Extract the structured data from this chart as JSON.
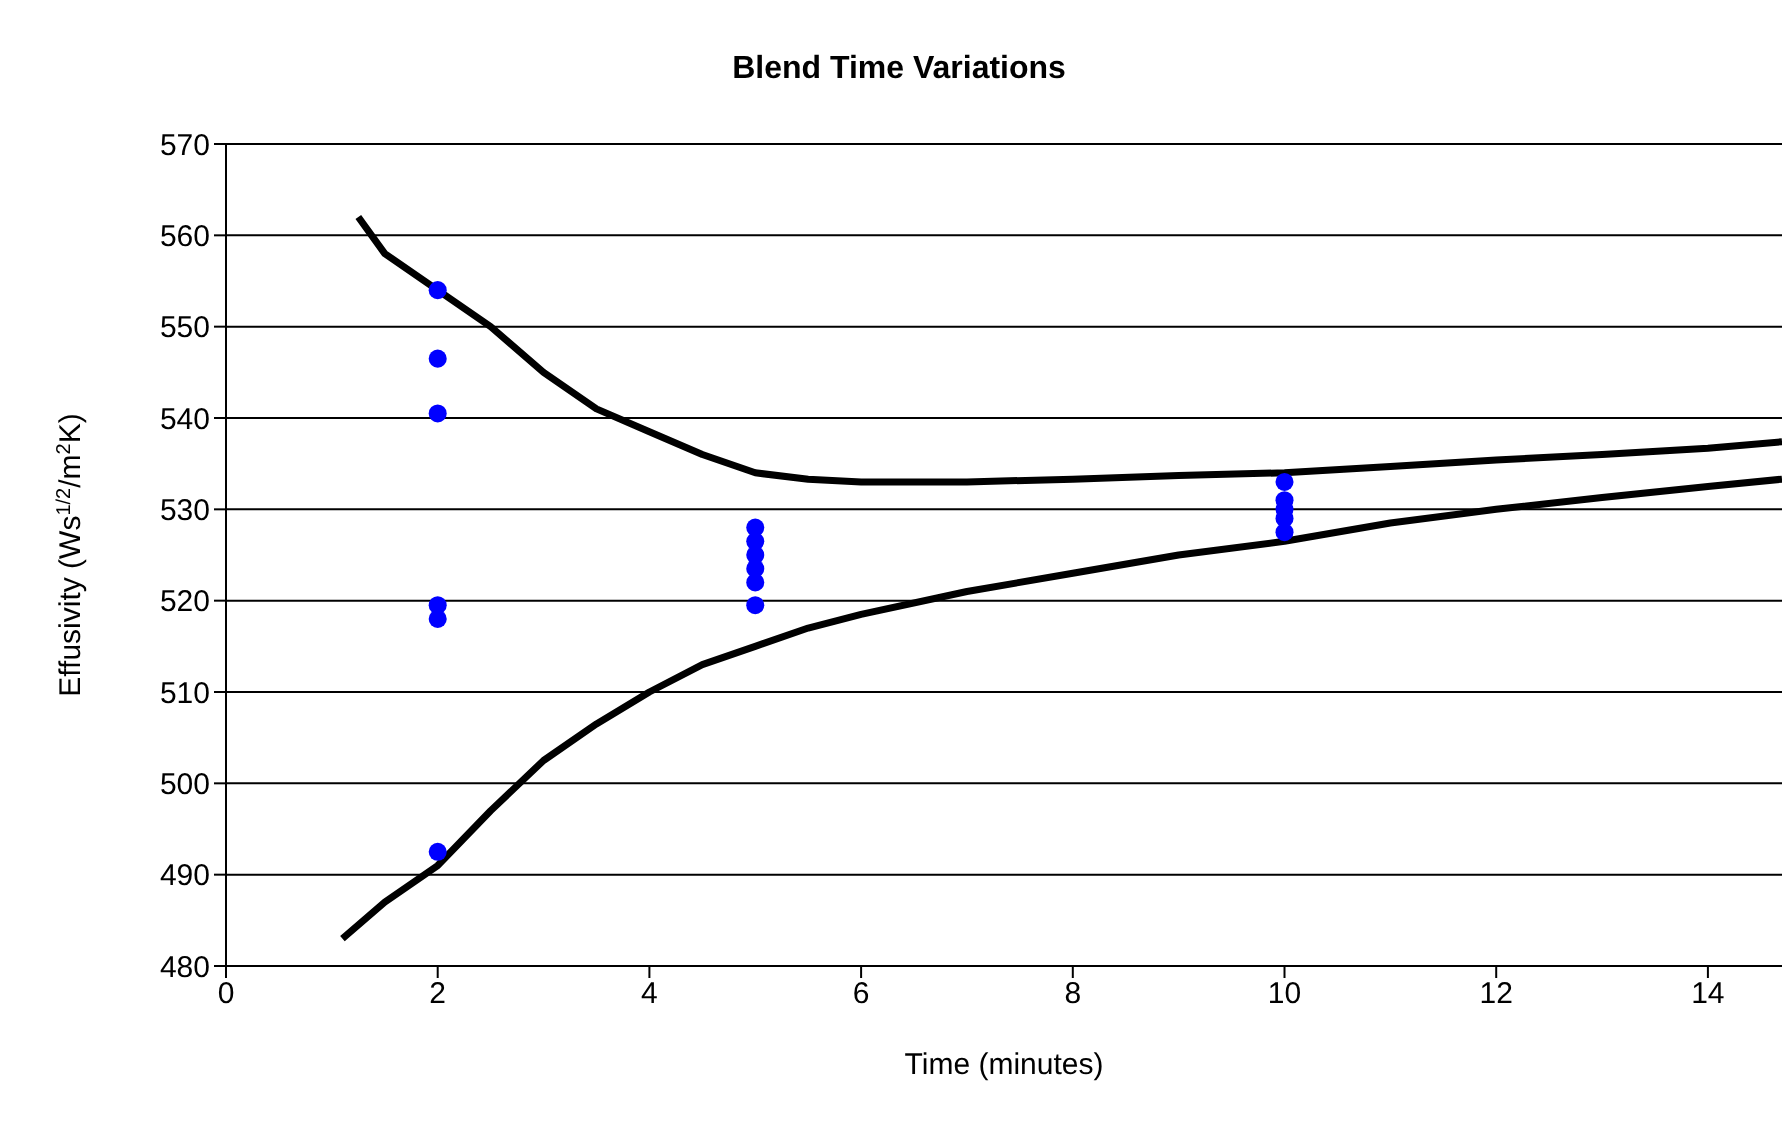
{
  "chart_data": {
    "type": "scatter",
    "title": "Blend Time Variations",
    "xlabel": "Time (minutes)",
    "ylabel": "Effusivity (Ws$^{1/2}$/m$^{2}$K)",
    "xlim": [
      0,
      14.7
    ],
    "xticks": [
      0,
      2,
      4,
      6,
      8,
      10,
      12,
      14
    ],
    "ylim": [
      480,
      570
    ],
    "yticks": [
      480,
      490,
      500,
      510,
      520,
      530,
      540,
      550,
      560,
      570
    ],
    "grid": "y",
    "marker": "circle",
    "series": [
      {
        "color": "#0000ff",
        "x": [
          2,
          2,
          2,
          2,
          2,
          2,
          5,
          5,
          5,
          5,
          5,
          5,
          10,
          10,
          10,
          10,
          10
        ],
        "values": [
          554,
          546.5,
          540.5,
          519.5,
          518,
          492.5,
          528,
          526.5,
          525,
          523.5,
          522,
          519.5,
          533,
          531,
          530,
          529,
          527.5
        ]
      },
      {
        "type": "line",
        "color": "#000000",
        "line_style": "solid",
        "marker": "none",
        "x": [
          1.25,
          1.5,
          2,
          2.5,
          3,
          3.5,
          4,
          4.5,
          5,
          5.5,
          6,
          7,
          8,
          9,
          10,
          11,
          12,
          13,
          14,
          14.7
        ],
        "values": [
          562,
          558,
          554,
          550,
          545,
          541,
          538.5,
          536,
          534,
          533.3,
          533,
          533,
          533.3,
          533.7,
          534,
          534.7,
          535.4,
          536,
          536.7,
          537.4
        ]
      },
      {
        "type": "line",
        "color": "#000000",
        "line_style": "solid",
        "marker": "none",
        "x": [
          1.1,
          1.5,
          2,
          2.5,
          3,
          3.5,
          4,
          4.5,
          5,
          5.5,
          6,
          7,
          8,
          9,
          10,
          11,
          12,
          13,
          14,
          14.7
        ],
        "values": [
          483,
          487,
          491,
          497,
          502.5,
          506.5,
          510,
          513,
          515,
          517,
          518.5,
          521,
          523,
          525,
          526.5,
          528.5,
          530,
          531.3,
          532.5,
          533.3
        ]
      }
    ]
  }
}
